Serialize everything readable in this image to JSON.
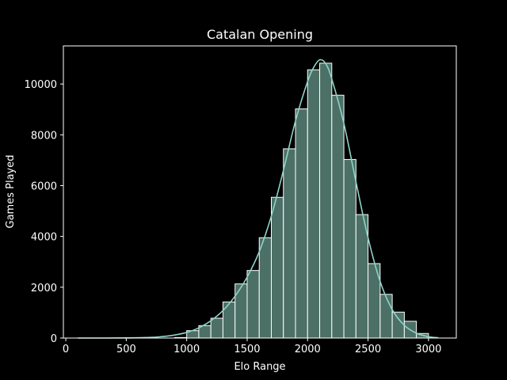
{
  "chart_data": {
    "type": "bar",
    "title": "Catalan Opening",
    "xlabel": "Elo Range",
    "ylabel": "Games Played",
    "xlim": [
      -20,
      3230
    ],
    "ylim": [
      0,
      11500
    ],
    "x_ticks": [
      0,
      500,
      1000,
      1500,
      2000,
      2500,
      3000
    ],
    "y_ticks": [
      0,
      2000,
      4000,
      6000,
      8000,
      10000
    ],
    "bin_edges": [
      0,
      100,
      200,
      300,
      400,
      500,
      600,
      700,
      800,
      900,
      1000,
      1100,
      1200,
      1300,
      1400,
      1500,
      1600,
      1700,
      1800,
      1900,
      2000,
      2100,
      2200,
      2300,
      2400,
      2500,
      2600,
      2700,
      2800,
      2900,
      3000,
      3100
    ],
    "values": [
      0,
      0,
      0,
      0,
      0,
      0,
      0,
      0,
      0,
      20,
      290,
      490,
      780,
      1420,
      2130,
      2660,
      3950,
      5540,
      7450,
      9020,
      10560,
      10820,
      9560,
      7030,
      4860,
      2930,
      1720,
      1020,
      660,
      180,
      0
    ],
    "kde": {
      "x": [
        100,
        300,
        500,
        700,
        800,
        900,
        1000,
        1100,
        1200,
        1300,
        1400,
        1500,
        1600,
        1700,
        1800,
        1900,
        2000,
        2050,
        2100,
        2150,
        2200,
        2300,
        2400,
        2500,
        2600,
        2700,
        2800,
        2900,
        3000,
        3080
      ],
      "y": [
        0,
        0,
        5,
        25,
        60,
        120,
        220,
        400,
        680,
        1080,
        1650,
        2400,
        3400,
        4800,
        6600,
        8550,
        10100,
        10650,
        10950,
        10800,
        10200,
        8450,
        6150,
        3950,
        2230,
        1120,
        500,
        190,
        55,
        10
      ]
    },
    "colors": {
      "bar_fill": "#4c7066",
      "bar_edge": "#ffffff",
      "kde_line": "#8dd3c7",
      "background": "#000000",
      "text": "#ffffff"
    },
    "grid": false,
    "legend": "none"
  }
}
